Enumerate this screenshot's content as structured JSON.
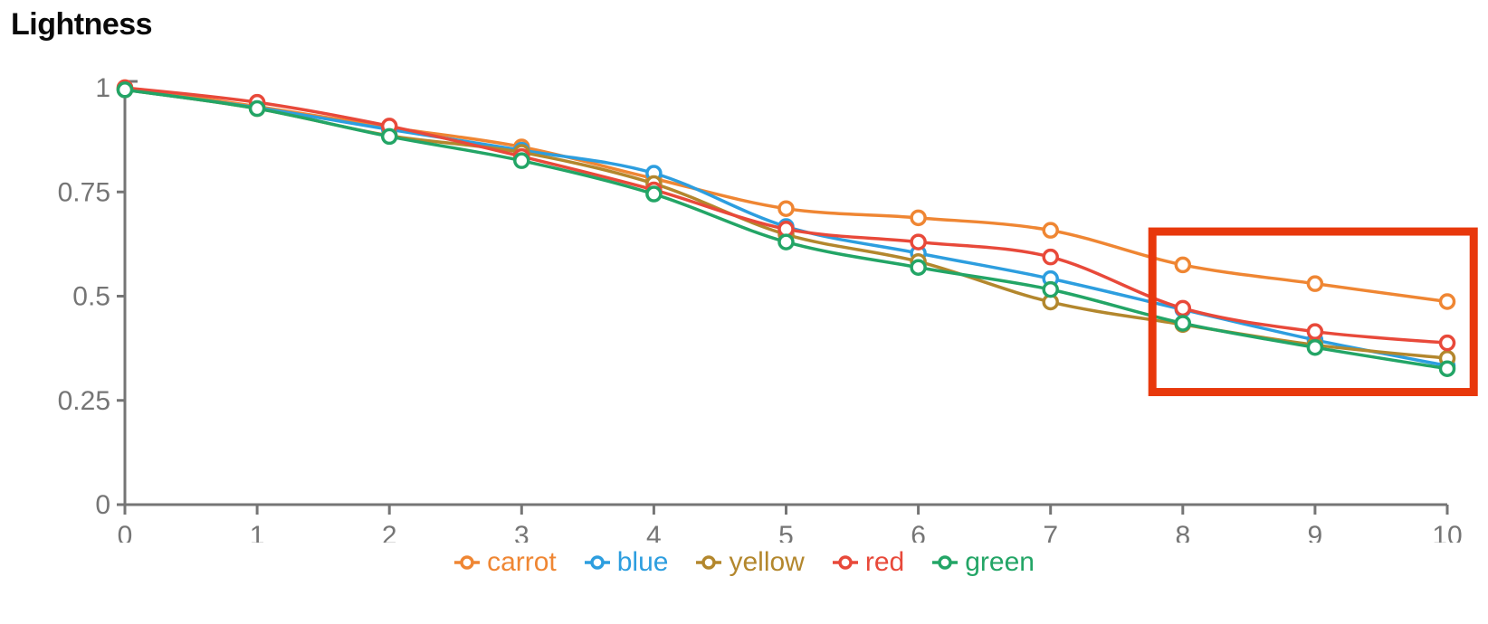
{
  "title": "Lightness",
  "axis_color": "#757575",
  "chart_data": {
    "type": "line",
    "title": "Lightness",
    "xlabel": "",
    "ylabel": "",
    "xlim": [
      0,
      10
    ],
    "ylim": [
      0,
      1
    ],
    "grid": false,
    "legend_position": "bottom",
    "x": [
      0,
      1,
      2,
      3,
      4,
      5,
      6,
      7,
      8,
      9,
      10
    ],
    "x_tick_labels": [
      "0",
      "1",
      "2",
      "3",
      "4",
      "5",
      "6",
      "7",
      "8",
      "9",
      "10"
    ],
    "y_ticks": [
      0,
      0.25,
      0.5,
      0.75,
      1
    ],
    "y_tick_labels": [
      "0",
      "0.25",
      "0.5",
      "0.75",
      "1"
    ],
    "series": [
      {
        "name": "carrot",
        "color": "#ef8633",
        "values": [
          1.0,
          0.955,
          0.905,
          0.858,
          0.782,
          0.71,
          0.688,
          0.658,
          0.575,
          0.53,
          0.487
        ]
      },
      {
        "name": "blue",
        "color": "#2d9edf",
        "values": [
          0.995,
          0.952,
          0.9,
          0.85,
          0.795,
          0.667,
          0.603,
          0.542,
          0.468,
          0.395,
          0.333
        ]
      },
      {
        "name": "yellow",
        "color": "#b3872d",
        "values": [
          0.995,
          0.95,
          0.885,
          0.845,
          0.77,
          0.648,
          0.583,
          0.486,
          0.432,
          0.383,
          0.351
        ]
      },
      {
        "name": "red",
        "color": "#e8493a",
        "values": [
          1.0,
          0.965,
          0.908,
          0.835,
          0.755,
          0.661,
          0.63,
          0.594,
          0.471,
          0.415,
          0.388
        ]
      },
      {
        "name": "green",
        "color": "#23a566",
        "values": [
          0.995,
          0.95,
          0.883,
          0.825,
          0.745,
          0.63,
          0.569,
          0.516,
          0.435,
          0.377,
          0.326
        ]
      }
    ],
    "annotation": {
      "type": "rect",
      "color": "#e8380c",
      "stroke_width": 9,
      "x_range": [
        7.77,
        10.2
      ],
      "y_range": [
        0.27,
        0.655
      ]
    }
  }
}
